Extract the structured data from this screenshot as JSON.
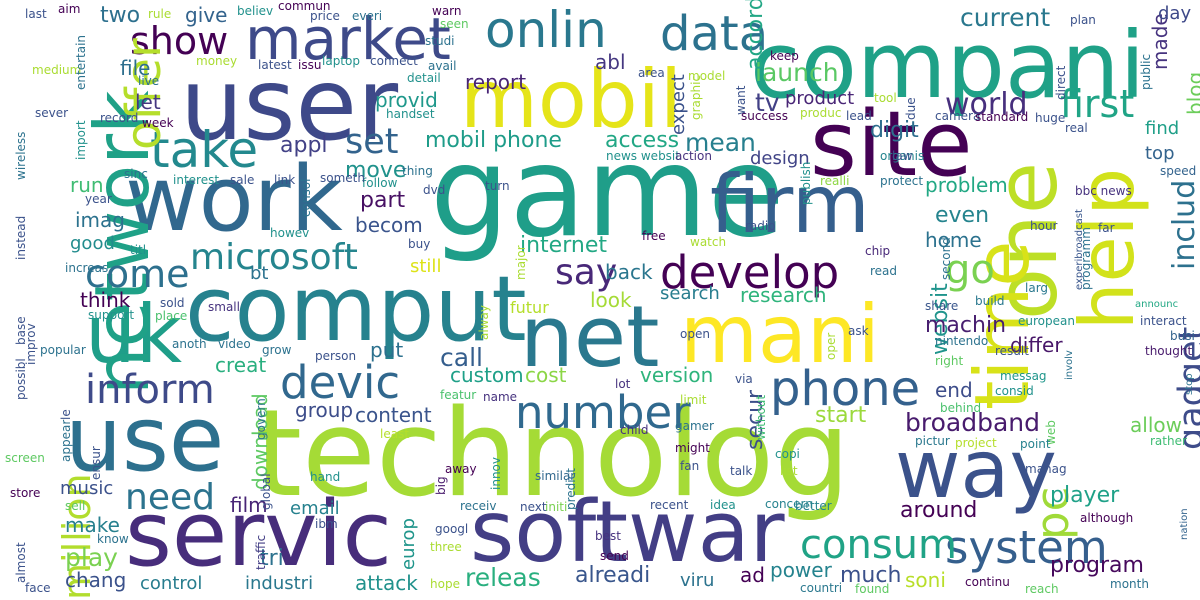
{
  "words": [
    {
      "text": "technolog",
      "color": "#a5db36"
    },
    {
      "text": "game",
      "color": "#1f9e89"
    },
    {
      "text": "user",
      "color": "#3e4989"
    },
    {
      "text": "compani",
      "color": "#1fa187"
    },
    {
      "text": "mobil",
      "color": "#e5e419"
    },
    {
      "text": "site",
      "color": "#440154"
    },
    {
      "text": "work",
      "color": "#31688e"
    },
    {
      "text": "comput",
      "color": "#26828e"
    },
    {
      "text": "servic",
      "color": "#472d7b"
    },
    {
      "text": "softwar",
      "color": "#433e85"
    },
    {
      "text": "use",
      "color": "#2d708e"
    },
    {
      "text": "uk",
      "color": "#1f9e89"
    },
    {
      "text": "net",
      "color": "#2a788e"
    },
    {
      "text": "mani",
      "color": "#fde725"
    },
    {
      "text": "way",
      "color": "#3b528b"
    },
    {
      "text": "firm",
      "color": "#355f8d"
    },
    {
      "text": "network",
      "color": "#1fa187"
    },
    {
      "text": "one",
      "color": "#bddf26"
    },
    {
      "text": "help",
      "color": "#d2e21b"
    },
    {
      "text": "time",
      "color": "#d8e219"
    },
    {
      "text": "market",
      "color": "#3e4a89"
    },
    {
      "text": "onlin",
      "color": "#2a788e"
    },
    {
      "text": "data",
      "color": "#2c728e"
    },
    {
      "text": "take",
      "color": "#23898e"
    },
    {
      "text": "show",
      "color": "#440154"
    },
    {
      "text": "offer",
      "color": "#b5de2b"
    },
    {
      "text": "develop",
      "color": "#440154"
    },
    {
      "text": "microsoft",
      "color": "#25858e"
    },
    {
      "text": "devic",
      "color": "#31688e"
    },
    {
      "text": "phone",
      "color": "#34618d"
    },
    {
      "text": "inform",
      "color": "#3e4a89"
    },
    {
      "text": "number",
      "color": "#30698e"
    },
    {
      "text": "say",
      "color": "#482878"
    },
    {
      "text": "come",
      "color": "#2d708e"
    },
    {
      "text": "go",
      "color": "#7ad151"
    },
    {
      "text": "pc",
      "color": "#a0da39"
    },
    {
      "text": "first",
      "color": "#20a486"
    },
    {
      "text": "million",
      "color": "#b2dd2d"
    },
    {
      "text": "need",
      "color": "#2c738e"
    },
    {
      "text": "system",
      "color": "#355f8d"
    },
    {
      "text": "consum",
      "color": "#20a386"
    },
    {
      "text": "gadget",
      "color": "#3e4c8a"
    },
    {
      "text": "world",
      "color": "#472f7d"
    },
    {
      "text": "set",
      "color": "#33638d"
    },
    {
      "text": "broadband",
      "color": "#481b6d"
    },
    {
      "text": "product",
      "color": "#482576"
    },
    {
      "text": "tv",
      "color": "#424086"
    },
    {
      "text": "includ",
      "color": "#2d718e"
    },
    {
      "text": "access",
      "color": "#22a785"
    },
    {
      "text": "mean",
      "color": "#277f8e"
    },
    {
      "text": "mobil phone",
      "color": "#1e9c89"
    },
    {
      "text": "appl",
      "color": "#424186"
    },
    {
      "text": "launch",
      "color": "#5ac864"
    },
    {
      "text": "digit",
      "color": "#2e6e8e"
    },
    {
      "text": "current",
      "color": "#2a788e"
    },
    {
      "text": "report",
      "color": "#482475"
    },
    {
      "text": "abl",
      "color": "#453781"
    },
    {
      "text": "design",
      "color": "#414487"
    },
    {
      "text": "accord",
      "color": "#22a785"
    },
    {
      "text": "made",
      "color": "#46337f"
    },
    {
      "text": "find",
      "color": "#1f9f88"
    },
    {
      "text": "top",
      "color": "#33638d"
    },
    {
      "text": "day",
      "color": "#3e4989"
    },
    {
      "text": "blog",
      "color": "#6ccd5a"
    },
    {
      "text": "file",
      "color": "#2e6f8e"
    },
    {
      "text": "let",
      "color": "#453781"
    },
    {
      "text": "two",
      "color": "#2d708e"
    },
    {
      "text": "give",
      "color": "#33638d"
    },
    {
      "text": "provid",
      "color": "#1f988b"
    },
    {
      "text": "expect",
      "color": "#3b528b"
    },
    {
      "text": "move",
      "color": "#20928c"
    },
    {
      "text": "part",
      "color": "#471063"
    },
    {
      "text": "becom",
      "color": "#3a548c"
    },
    {
      "text": "internet",
      "color": "#22a884"
    },
    {
      "text": "back",
      "color": "#2a768e"
    },
    {
      "text": "look",
      "color": "#a5db36"
    },
    {
      "text": "search",
      "color": "#287d8e"
    },
    {
      "text": "research",
      "color": "#2fb47c"
    },
    {
      "text": "websit",
      "color": "#1f948c"
    },
    {
      "text": "machin",
      "color": "#481f70"
    },
    {
      "text": "home",
      "color": "#2c728e"
    },
    {
      "text": "even",
      "color": "#25848e"
    },
    {
      "text": "problem",
      "color": "#22a884"
    },
    {
      "text": "call",
      "color": "#355e8d"
    },
    {
      "text": "put",
      "color": "#2c718e"
    },
    {
      "text": "differ",
      "color": "#481769"
    },
    {
      "text": "custom",
      "color": "#1fa088"
    },
    {
      "text": "cost",
      "color": "#8bd646"
    },
    {
      "text": "version",
      "color": "#2fb47c"
    },
    {
      "text": "end",
      "color": "#3d4d8a"
    },
    {
      "text": "group",
      "color": "#3d4d8a"
    },
    {
      "text": "content",
      "color": "#3a548c"
    },
    {
      "text": "start",
      "color": "#9bd93c"
    },
    {
      "text": "allow",
      "color": "#6ccd5a"
    },
    {
      "text": "secur",
      "color": "#3c4f8a"
    },
    {
      "text": "download",
      "color": "#5ec962"
    },
    {
      "text": "player",
      "color": "#1fa188"
    },
    {
      "text": "music",
      "color": "#3b518b"
    },
    {
      "text": "film",
      "color": "#482576"
    },
    {
      "text": "email",
      "color": "#26818e"
    },
    {
      "text": "around",
      "color": "#440154"
    },
    {
      "text": "program",
      "color": "#46085c"
    },
    {
      "text": "make",
      "color": "#27808e"
    },
    {
      "text": "play",
      "color": "#7ad151"
    },
    {
      "text": "chang",
      "color": "#3b528b"
    },
    {
      "text": "tri",
      "color": "#2c728e"
    },
    {
      "text": "control",
      "color": "#287d8e"
    },
    {
      "text": "industri",
      "color": "#2a788e"
    },
    {
      "text": "attack",
      "color": "#21918c"
    },
    {
      "text": "releas",
      "color": "#29af7f"
    },
    {
      "text": "alreadi",
      "color": "#39568c"
    },
    {
      "text": "ad",
      "color": "#440154"
    },
    {
      "text": "power",
      "color": "#25838e"
    },
    {
      "text": "much",
      "color": "#3b518b"
    },
    {
      "text": "viru",
      "color": "#2c738e"
    },
    {
      "text": "soni",
      "color": "#b8de29"
    },
    {
      "text": "europ",
      "color": "#1f958b"
    },
    {
      "text": "imag",
      "color": "#2c728e"
    },
    {
      "text": "run",
      "color": "#3fbc73"
    },
    {
      "text": "think",
      "color": "#440154"
    },
    {
      "text": "good",
      "color": "#228c8d"
    },
    {
      "text": "still",
      "color": "#dde318"
    },
    {
      "text": "creat",
      "color": "#29af7f"
    },
    {
      "text": "bt",
      "color": "#2c728e"
    },
    {
      "text": "futur",
      "color": "#b5de2b"
    },
    {
      "text": "realli",
      "color": "#8fd744"
    },
    {
      "text": "organis",
      "color": "#25848e"
    },
    {
      "text": "interact",
      "color": "#3b528b"
    },
    {
      "text": "speed",
      "color": "#33638d"
    },
    {
      "text": "bbc news",
      "color": "#46327e"
    },
    {
      "text": "experibroadcast",
      "color": "#39568c"
    },
    {
      "text": "hour",
      "color": "#3b528b"
    },
    {
      "text": "larg",
      "color": "#2a788e"
    },
    {
      "text": "share",
      "color": "#39568c"
    },
    {
      "text": "build",
      "color": "#2a788e"
    },
    {
      "text": "read",
      "color": "#2c728e"
    },
    {
      "text": "chip",
      "color": "#482878"
    },
    {
      "text": "european",
      "color": "#21918c"
    },
    {
      "text": "result",
      "color": "#3b528b"
    },
    {
      "text": "thought",
      "color": "#481a6c"
    },
    {
      "text": "busi",
      "color": "#33638d"
    },
    {
      "text": "announc",
      "color": "#22a884"
    },
    {
      "text": "nintendo",
      "color": "#2c728e"
    },
    {
      "text": "right",
      "color": "#5ec962"
    },
    {
      "text": "messag",
      "color": "#1f968b"
    },
    {
      "text": "consid",
      "color": "#21918c"
    },
    {
      "text": "involv",
      "color": "#2c728e"
    },
    {
      "text": "web",
      "color": "#5ec962"
    },
    {
      "text": "point",
      "color": "#26828e"
    },
    {
      "text": "rather",
      "color": "#3fbc73"
    },
    {
      "text": "stop",
      "color": "#2c728e"
    },
    {
      "text": "pictur",
      "color": "#2a788e"
    },
    {
      "text": "project",
      "color": "#b5de2b"
    },
    {
      "text": "behind",
      "color": "#4ac16d"
    },
    {
      "text": "manag",
      "color": "#3b528b"
    },
    {
      "text": "although",
      "color": "#440154"
    },
    {
      "text": "nation",
      "color": "#33638d"
    },
    {
      "text": "month",
      "color": "#2c728e"
    },
    {
      "text": "reach",
      "color": "#5ec962"
    },
    {
      "text": "continu",
      "color": "#440154"
    },
    {
      "text": "countri",
      "color": "#2a788e"
    },
    {
      "text": "found",
      "color": "#5ec962"
    },
    {
      "text": "concern",
      "color": "#26828e"
    },
    {
      "text": "better",
      "color": "#26828e"
    },
    {
      "text": "idea",
      "color": "#21918c"
    },
    {
      "text": "recent",
      "color": "#3b528b"
    },
    {
      "text": "initi",
      "color": "#7ad151"
    },
    {
      "text": "next",
      "color": "#3b528b"
    },
    {
      "text": "googl",
      "color": "#3b528b"
    },
    {
      "text": "receiv",
      "color": "#2c728e"
    },
    {
      "text": "best",
      "color": "#46327e"
    },
    {
      "text": "send",
      "color": "#440154"
    },
    {
      "text": "hope",
      "color": "#aadc32"
    },
    {
      "text": "three",
      "color": "#aadc32"
    },
    {
      "text": "ibm",
      "color": "#3b528b"
    },
    {
      "text": "traffic",
      "color": "#433e85"
    },
    {
      "text": "global",
      "color": "#3b528b"
    },
    {
      "text": "hand",
      "color": "#21918c"
    },
    {
      "text": "big",
      "color": "#481a6c"
    },
    {
      "text": "away",
      "color": "#440154"
    },
    {
      "text": "innov",
      "color": "#21918c"
    },
    {
      "text": "predict",
      "color": "#2c728e"
    },
    {
      "text": "similar",
      "color": "#31688e"
    },
    {
      "text": "fan",
      "color": "#3b528b"
    },
    {
      "text": "might",
      "color": "#440154"
    },
    {
      "text": "talk",
      "color": "#3b528b"
    },
    {
      "text": "list",
      "color": "#aadc32"
    },
    {
      "text": "copi",
      "color": "#21918c"
    },
    {
      "text": "without",
      "color": "#3fbc73"
    },
    {
      "text": "limit",
      "color": "#aadc32"
    },
    {
      "text": "child",
      "color": "#46327e"
    },
    {
      "text": "gamer",
      "color": "#2c728e"
    },
    {
      "text": "least",
      "color": "#b5de2b"
    },
    {
      "text": "ensur",
      "color": "#3b528b"
    },
    {
      "text": "govern",
      "color": "#2c728e"
    },
    {
      "text": "name",
      "color": "#46327e"
    },
    {
      "text": "featur",
      "color": "#4ac16d"
    },
    {
      "text": "lot",
      "color": "#46327e"
    },
    {
      "text": "via",
      "color": "#3b528b"
    },
    {
      "text": "open",
      "color": "#3b528b"
    },
    {
      "text": "oper",
      "color": "#aadc32"
    },
    {
      "text": "ask",
      "color": "#3b528b"
    },
    {
      "text": "person",
      "color": "#3b528b"
    },
    {
      "text": "video",
      "color": "#2c728e"
    },
    {
      "text": "anoth",
      "color": "#2c728e"
    },
    {
      "text": "grow",
      "color": "#2c728e"
    },
    {
      "text": "small",
      "color": "#46327e"
    },
    {
      "text": "sold",
      "color": "#3b528b"
    },
    {
      "text": "place",
      "color": "#4ac16d"
    },
    {
      "text": "support",
      "color": "#21918c"
    },
    {
      "text": "popular",
      "color": "#2c728e"
    },
    {
      "text": "improv",
      "color": "#3b528b"
    },
    {
      "text": "possibl",
      "color": "#3b528b"
    },
    {
      "text": "base",
      "color": "#3b528b"
    },
    {
      "text": "le",
      "color": "#3b528b"
    },
    {
      "text": "appear",
      "color": "#2c728e"
    },
    {
      "text": "screen",
      "color": "#5ec962"
    },
    {
      "text": "store",
      "color": "#440154"
    },
    {
      "text": "almost",
      "color": "#3b528b"
    },
    {
      "text": "face",
      "color": "#3b528b"
    },
    {
      "text": "sell",
      "color": "#5ec962"
    },
    {
      "text": "know",
      "color": "#2c728e"
    },
    {
      "text": "increas",
      "color": "#2c728e"
    },
    {
      "text": "titl",
      "color": "#21918c"
    },
    {
      "text": "year",
      "color": "#3b528b"
    },
    {
      "text": "consol",
      "color": "#2c728e"
    },
    {
      "text": "howev",
      "color": "#21918c"
    },
    {
      "text": "link",
      "color": "#3b528b"
    },
    {
      "text": "buy",
      "color": "#3b528b"
    },
    {
      "text": "sale",
      "color": "#3b528b"
    },
    {
      "text": "interest",
      "color": "#21918c"
    },
    {
      "text": "sinc",
      "color": "#2c728e"
    },
    {
      "text": "follow",
      "color": "#21918c"
    },
    {
      "text": "someth",
      "color": "#3b528b"
    },
    {
      "text": "thing",
      "color": "#2c728e"
    },
    {
      "text": "dvd",
      "color": "#3b528b"
    },
    {
      "text": "news websit",
      "color": "#21918c"
    },
    {
      "text": "turn",
      "color": "#3b528b"
    },
    {
      "text": "action",
      "color": "#46327e"
    },
    {
      "text": "record",
      "color": "#3b528b"
    },
    {
      "text": "week",
      "color": "#440154"
    },
    {
      "text": "import",
      "color": "#21918c"
    },
    {
      "text": "instead",
      "color": "#3b528b"
    },
    {
      "text": "wireless",
      "color": "#2c728e"
    },
    {
      "text": "sever",
      "color": "#3b528b"
    },
    {
      "text": "medium",
      "color": "#aadc32"
    },
    {
      "text": "entertain",
      "color": "#2c728e"
    },
    {
      "text": "live",
      "color": "#2c728e"
    },
    {
      "text": "last",
      "color": "#3b528b"
    },
    {
      "text": "aim",
      "color": "#440154"
    },
    {
      "text": "rule",
      "color": "#aadc32"
    },
    {
      "text": "believ",
      "color": "#21918c"
    },
    {
      "text": "commun",
      "color": "#440154"
    },
    {
      "text": "money",
      "color": "#aadc32"
    },
    {
      "text": "latest",
      "color": "#3b528b"
    },
    {
      "text": "issu",
      "color": "#440154"
    },
    {
      "text": "price",
      "color": "#3b528b"
    },
    {
      "text": "everi",
      "color": "#2c728e"
    },
    {
      "text": "laptop",
      "color": "#21918c"
    },
    {
      "text": "connect",
      "color": "#3b528b"
    },
    {
      "text": "avail",
      "color": "#2c728e"
    },
    {
      "text": "warn",
      "color": "#440154"
    },
    {
      "text": "seen",
      "color": "#5ec962"
    },
    {
      "text": "studi",
      "color": "#2c728e"
    },
    {
      "text": "detail",
      "color": "#21918c"
    },
    {
      "text": "handset",
      "color": "#21918c"
    },
    {
      "text": "area",
      "color": "#3b528b"
    },
    {
      "text": "model",
      "color": "#aadc32"
    },
    {
      "text": "graphic",
      "color": "#aadc32"
    },
    {
      "text": "want",
      "color": "#3b528b"
    },
    {
      "text": "success",
      "color": "#440154"
    },
    {
      "text": "produc",
      "color": "#aadc32"
    },
    {
      "text": "lead",
      "color": "#3b528b"
    },
    {
      "text": "tool",
      "color": "#aadc32"
    },
    {
      "text": "due",
      "color": "#3b528b"
    },
    {
      "text": "camera",
      "color": "#3b528b"
    },
    {
      "text": "standard",
      "color": "#440154"
    },
    {
      "text": "huge",
      "color": "#3b528b"
    },
    {
      "text": "direct",
      "color": "#3b528b"
    },
    {
      "text": "public",
      "color": "#2c728e"
    },
    {
      "text": "real",
      "color": "#3b528b"
    },
    {
      "text": "keep",
      "color": "#440154"
    },
    {
      "text": "plan",
      "color": "#3b528b"
    },
    {
      "text": "law",
      "color": "#3b528b"
    },
    {
      "text": "protect",
      "color": "#2c728e"
    },
    {
      "text": "publish",
      "color": "#21918c"
    },
    {
      "text": "radio",
      "color": "#3b528b"
    },
    {
      "text": "free",
      "color": "#440154"
    },
    {
      "text": "watch",
      "color": "#aadc32"
    },
    {
      "text": "second",
      "color": "#2c728e"
    },
    {
      "text": "major",
      "color": "#aadc32"
    },
    {
      "text": "alway",
      "color": "#aadc32"
    },
    {
      "text": "far",
      "color": "#3b528b"
    },
    {
      "text": "programm",
      "color": "#2c728e"
    }
  ]
}
